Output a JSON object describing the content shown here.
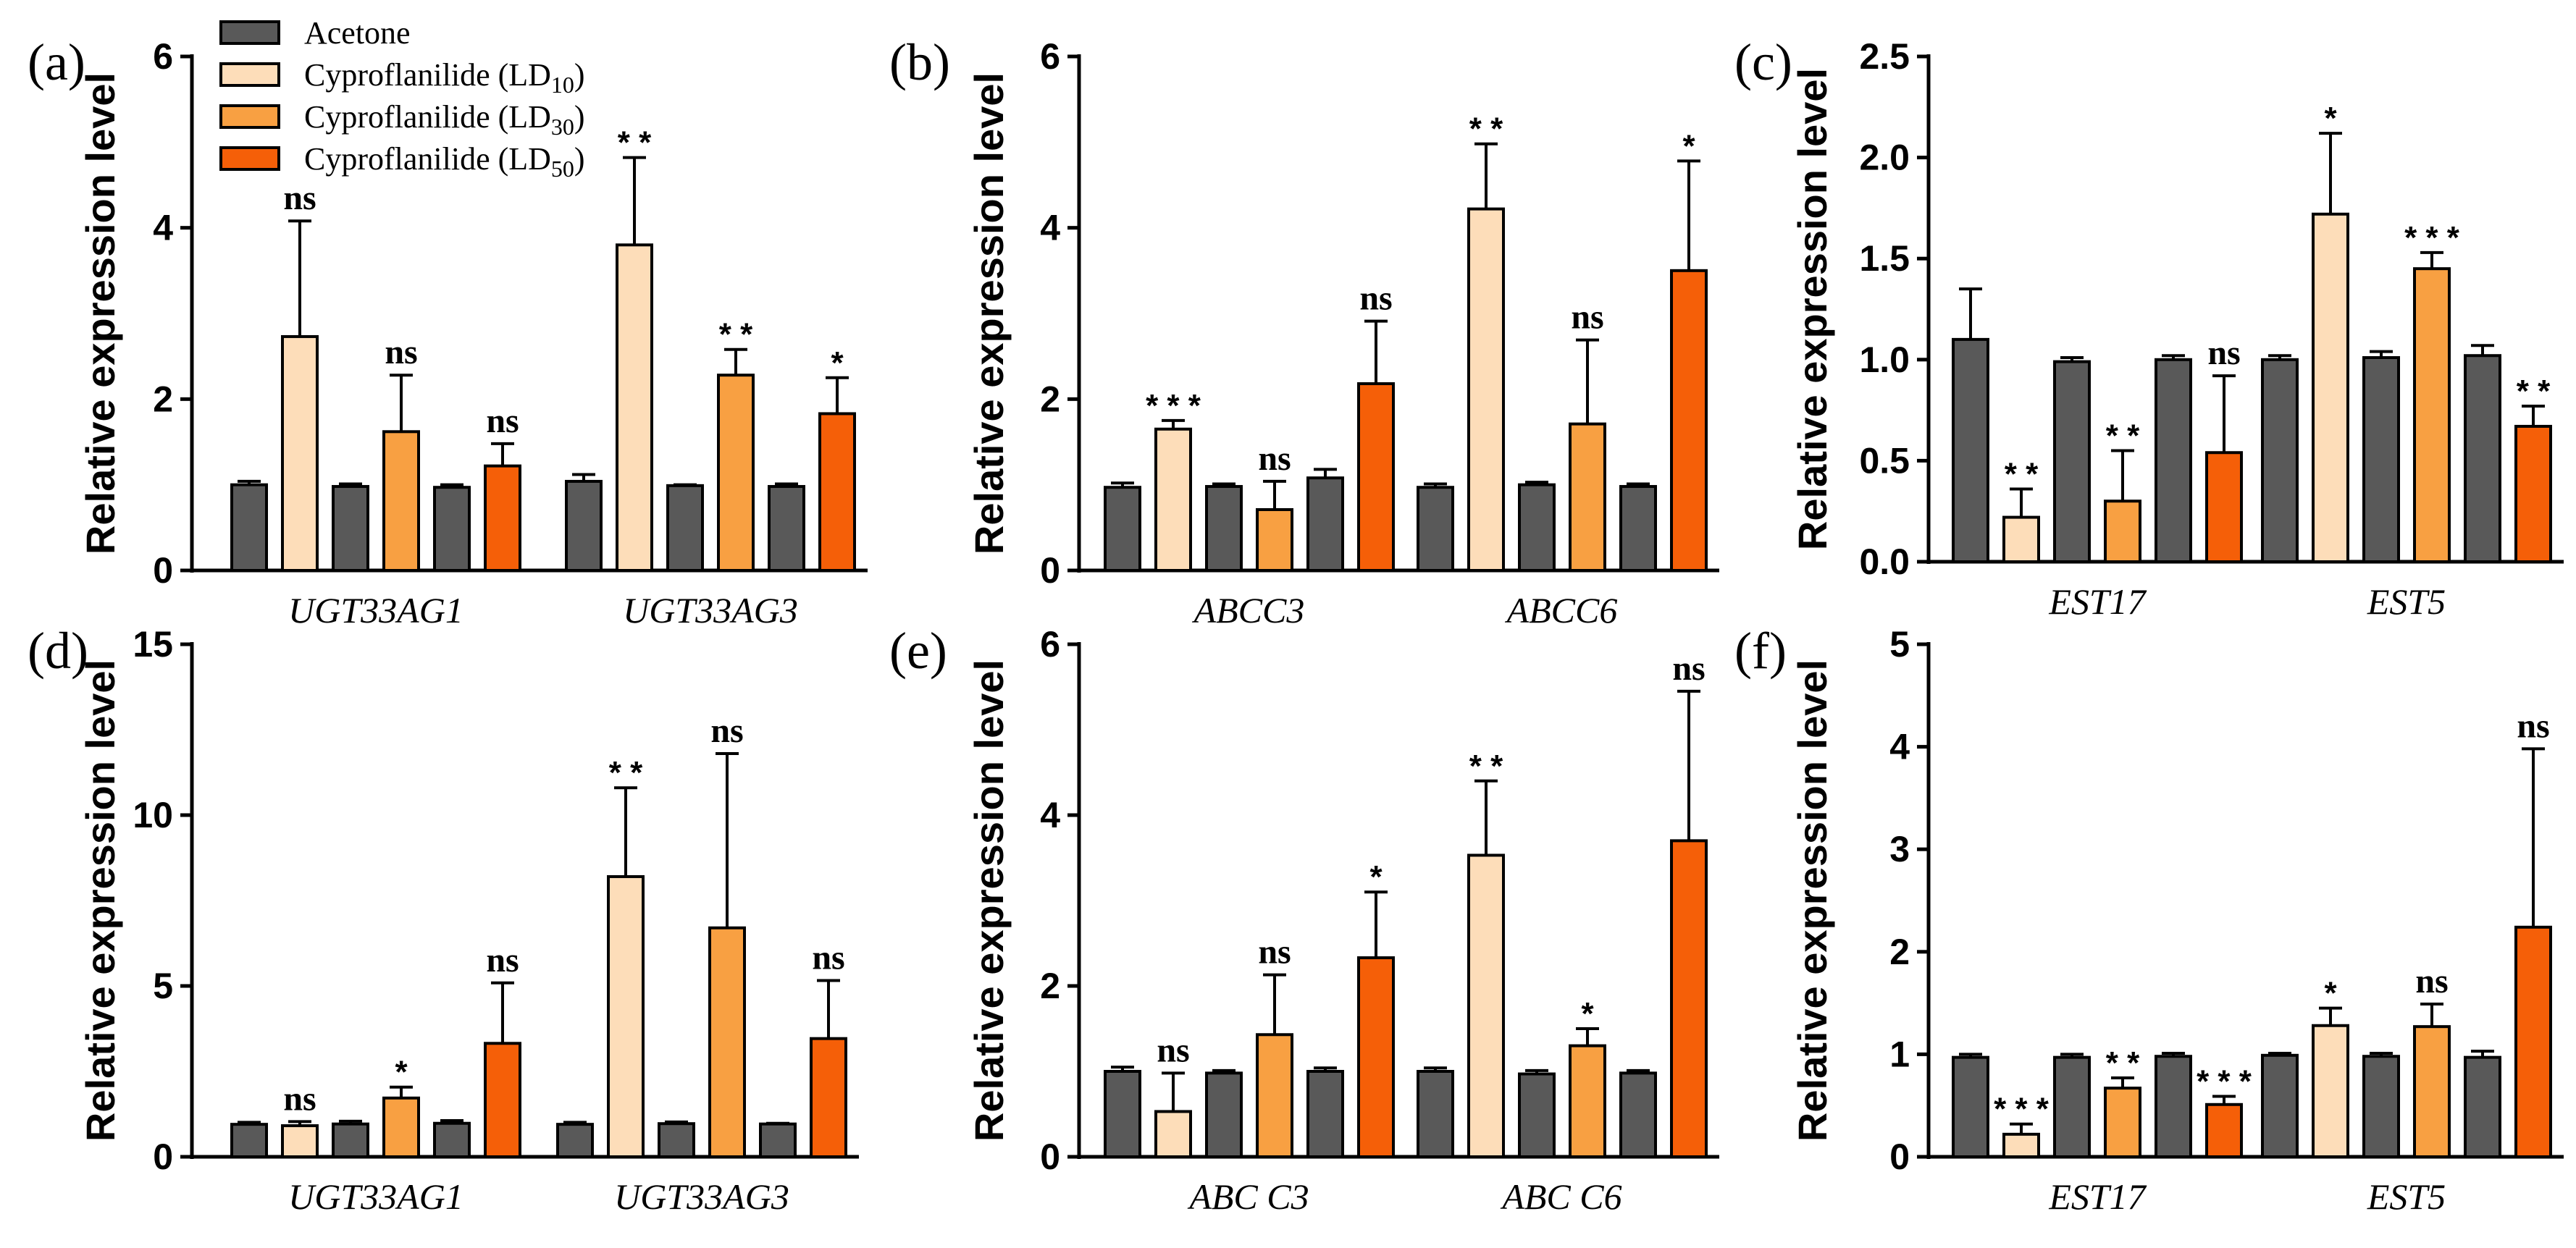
{
  "legend": {
    "items": [
      {
        "pre": "Acetone",
        "sub": "",
        "post": "",
        "color": "#595959"
      },
      {
        "pre": "Cyproflanilide (LD",
        "sub": "10",
        "post": ")",
        "color": "#FDDDB9"
      },
      {
        "pre": "Cyproflanilide (LD",
        "sub": "30",
        "post": ")",
        "color": "#F8A042"
      },
      {
        "pre": "Cyproflanilide (LD",
        "sub": "50",
        "post": ")",
        "color": "#F55F08"
      }
    ]
  },
  "ylabel": "Relative expression level",
  "chart_data": [
    {
      "type": "bar",
      "panel": "(a)",
      "ylim": [
        0,
        6
      ],
      "yticks": [
        "0",
        "2",
        "4",
        "6"
      ],
      "groups": [
        {
          "label": "UGT33AG1",
          "bars": [
            {
              "s": 0,
              "v": 1.0,
              "e": 0.04,
              "sig": ""
            },
            {
              "s": 1,
              "v": 2.73,
              "e": 1.35,
              "sig": "ns"
            },
            {
              "s": 0,
              "v": 0.98,
              "e": 0.03,
              "sig": ""
            },
            {
              "s": 2,
              "v": 1.62,
              "e": 0.66,
              "sig": "ns"
            },
            {
              "s": 0,
              "v": 0.97,
              "e": 0.03,
              "sig": ""
            },
            {
              "s": 3,
              "v": 1.22,
              "e": 0.26,
              "sig": "ns"
            }
          ]
        },
        {
          "label": "UGT33AG3",
          "bars": [
            {
              "s": 0,
              "v": 1.04,
              "e": 0.08,
              "sig": ""
            },
            {
              "s": 1,
              "v": 3.8,
              "e": 1.02,
              "sig": "**"
            },
            {
              "s": 0,
              "v": 0.99,
              "e": 0.01,
              "sig": ""
            },
            {
              "s": 2,
              "v": 2.28,
              "e": 0.3,
              "sig": "**"
            },
            {
              "s": 0,
              "v": 0.98,
              "e": 0.03,
              "sig": ""
            },
            {
              "s": 3,
              "v": 1.83,
              "e": 0.42,
              "sig": "*"
            }
          ]
        }
      ]
    },
    {
      "type": "bar",
      "panel": "(b)",
      "ylim": [
        0,
        6
      ],
      "yticks": [
        "0",
        "2",
        "4",
        "6"
      ],
      "groups": [
        {
          "label": "ABCC3",
          "bars": [
            {
              "s": 0,
              "v": 0.97,
              "e": 0.05,
              "sig": ""
            },
            {
              "s": 1,
              "v": 1.65,
              "e": 0.1,
              "sig": "***"
            },
            {
              "s": 0,
              "v": 0.98,
              "e": 0.03,
              "sig": ""
            },
            {
              "s": 2,
              "v": 0.71,
              "e": 0.33,
              "sig": "ns"
            },
            {
              "s": 0,
              "v": 1.08,
              "e": 0.1,
              "sig": ""
            },
            {
              "s": 3,
              "v": 2.18,
              "e": 0.73,
              "sig": "ns"
            }
          ]
        },
        {
          "label": "ABCC6",
          "bars": [
            {
              "s": 0,
              "v": 0.97,
              "e": 0.04,
              "sig": ""
            },
            {
              "s": 1,
              "v": 4.22,
              "e": 0.76,
              "sig": "**"
            },
            {
              "s": 0,
              "v": 1.0,
              "e": 0.03,
              "sig": ""
            },
            {
              "s": 2,
              "v": 1.71,
              "e": 0.98,
              "sig": "ns"
            },
            {
              "s": 0,
              "v": 0.98,
              "e": 0.03,
              "sig": ""
            },
            {
              "s": 3,
              "v": 3.5,
              "e": 1.28,
              "sig": "*"
            }
          ]
        }
      ]
    },
    {
      "type": "bar",
      "panel": "(c)",
      "ylim": [
        0,
        2.5
      ],
      "yticks": [
        "0.0",
        "0.5",
        "1.0",
        "1.5",
        "2.0",
        "2.5"
      ],
      "groups": [
        {
          "label": "EST17",
          "bars": [
            {
              "s": 0,
              "v": 1.1,
              "e": 0.25,
              "sig": ""
            },
            {
              "s": 1,
              "v": 0.22,
              "e": 0.14,
              "sig": "**"
            },
            {
              "s": 0,
              "v": 0.99,
              "e": 0.02,
              "sig": ""
            },
            {
              "s": 2,
              "v": 0.3,
              "e": 0.25,
              "sig": "**"
            },
            {
              "s": 0,
              "v": 1.0,
              "e": 0.02,
              "sig": ""
            },
            {
              "s": 3,
              "v": 0.54,
              "e": 0.38,
              "sig": "ns"
            }
          ]
        },
        {
          "label": "EST5",
          "bars": [
            {
              "s": 0,
              "v": 1.0,
              "e": 0.02,
              "sig": ""
            },
            {
              "s": 1,
              "v": 1.72,
              "e": 0.4,
              "sig": "*"
            },
            {
              "s": 0,
              "v": 1.01,
              "e": 0.03,
              "sig": ""
            },
            {
              "s": 2,
              "v": 1.45,
              "e": 0.08,
              "sig": "***"
            },
            {
              "s": 0,
              "v": 1.02,
              "e": 0.05,
              "sig": ""
            },
            {
              "s": 3,
              "v": 0.67,
              "e": 0.1,
              "sig": "**"
            }
          ]
        }
      ]
    },
    {
      "type": "bar",
      "panel": "(d)",
      "ylim": [
        0,
        15
      ],
      "yticks": [
        "0",
        "5",
        "10",
        "15"
      ],
      "groups": [
        {
          "label": "UGT33AG1",
          "bars": [
            {
              "s": 0,
              "v": 0.95,
              "e": 0.06,
              "sig": ""
            },
            {
              "s": 1,
              "v": 0.91,
              "e": 0.12,
              "sig": "ns"
            },
            {
              "s": 0,
              "v": 0.96,
              "e": 0.08,
              "sig": ""
            },
            {
              "s": 2,
              "v": 1.72,
              "e": 0.32,
              "sig": "*"
            },
            {
              "s": 0,
              "v": 0.98,
              "e": 0.08,
              "sig": ""
            },
            {
              "s": 3,
              "v": 3.32,
              "e": 1.77,
              "sig": "ns"
            }
          ]
        },
        {
          "label": "UGT33AG3",
          "bars": [
            {
              "s": 0,
              "v": 0.95,
              "e": 0.06,
              "sig": ""
            },
            {
              "s": 1,
              "v": 8.2,
              "e": 2.6,
              "sig": "**"
            },
            {
              "s": 0,
              "v": 0.97,
              "e": 0.05,
              "sig": ""
            },
            {
              "s": 2,
              "v": 6.7,
              "e": 5.1,
              "sig": "ns"
            },
            {
              "s": 0,
              "v": 0.96,
              "e": 0.02,
              "sig": ""
            },
            {
              "s": 3,
              "v": 3.46,
              "e": 1.7,
              "sig": "ns"
            }
          ]
        }
      ]
    },
    {
      "type": "bar",
      "panel": "(e)",
      "ylim": [
        0,
        6
      ],
      "yticks": [
        "0",
        "2",
        "4",
        "6"
      ],
      "groups": [
        {
          "label": "ABC C3",
          "bars": [
            {
              "s": 0,
              "v": 1.0,
              "e": 0.05,
              "sig": ""
            },
            {
              "s": 1,
              "v": 0.53,
              "e": 0.45,
              "sig": "ns"
            },
            {
              "s": 0,
              "v": 0.98,
              "e": 0.03,
              "sig": ""
            },
            {
              "s": 2,
              "v": 1.43,
              "e": 0.7,
              "sig": "ns"
            },
            {
              "s": 0,
              "v": 1.0,
              "e": 0.04,
              "sig": ""
            },
            {
              "s": 3,
              "v": 2.33,
              "e": 0.77,
              "sig": "*"
            }
          ]
        },
        {
          "label": "ABC C6",
          "bars": [
            {
              "s": 0,
              "v": 1.0,
              "e": 0.04,
              "sig": ""
            },
            {
              "s": 1,
              "v": 3.53,
              "e": 0.87,
              "sig": "**"
            },
            {
              "s": 0,
              "v": 0.97,
              "e": 0.04,
              "sig": ""
            },
            {
              "s": 2,
              "v": 1.3,
              "e": 0.2,
              "sig": "*"
            },
            {
              "s": 0,
              "v": 0.98,
              "e": 0.03,
              "sig": ""
            },
            {
              "s": 3,
              "v": 3.7,
              "e": 1.75,
              "sig": "ns"
            }
          ]
        }
      ]
    },
    {
      "type": "bar",
      "panel": "(f)",
      "ylim": [
        0,
        5
      ],
      "yticks": [
        "0",
        "1",
        "2",
        "3",
        "4",
        "5"
      ],
      "groups": [
        {
          "label": "EST17",
          "bars": [
            {
              "s": 0,
              "v": 0.97,
              "e": 0.03,
              "sig": ""
            },
            {
              "s": 1,
              "v": 0.22,
              "e": 0.1,
              "sig": "***"
            },
            {
              "s": 0,
              "v": 0.97,
              "e": 0.03,
              "sig": ""
            },
            {
              "s": 2,
              "v": 0.67,
              "e": 0.1,
              "sig": "**"
            },
            {
              "s": 0,
              "v": 0.98,
              "e": 0.03,
              "sig": ""
            },
            {
              "s": 3,
              "v": 0.51,
              "e": 0.08,
              "sig": "***"
            }
          ]
        },
        {
          "label": "EST5",
          "bars": [
            {
              "s": 0,
              "v": 0.99,
              "e": 0.02,
              "sig": ""
            },
            {
              "s": 1,
              "v": 1.28,
              "e": 0.17,
              "sig": "*"
            },
            {
              "s": 0,
              "v": 0.98,
              "e": 0.03,
              "sig": ""
            },
            {
              "s": 2,
              "v": 1.27,
              "e": 0.22,
              "sig": "ns"
            },
            {
              "s": 0,
              "v": 0.97,
              "e": 0.06,
              "sig": ""
            },
            {
              "s": 3,
              "v": 2.24,
              "e": 1.74,
              "sig": "ns"
            }
          ]
        }
      ]
    }
  ]
}
